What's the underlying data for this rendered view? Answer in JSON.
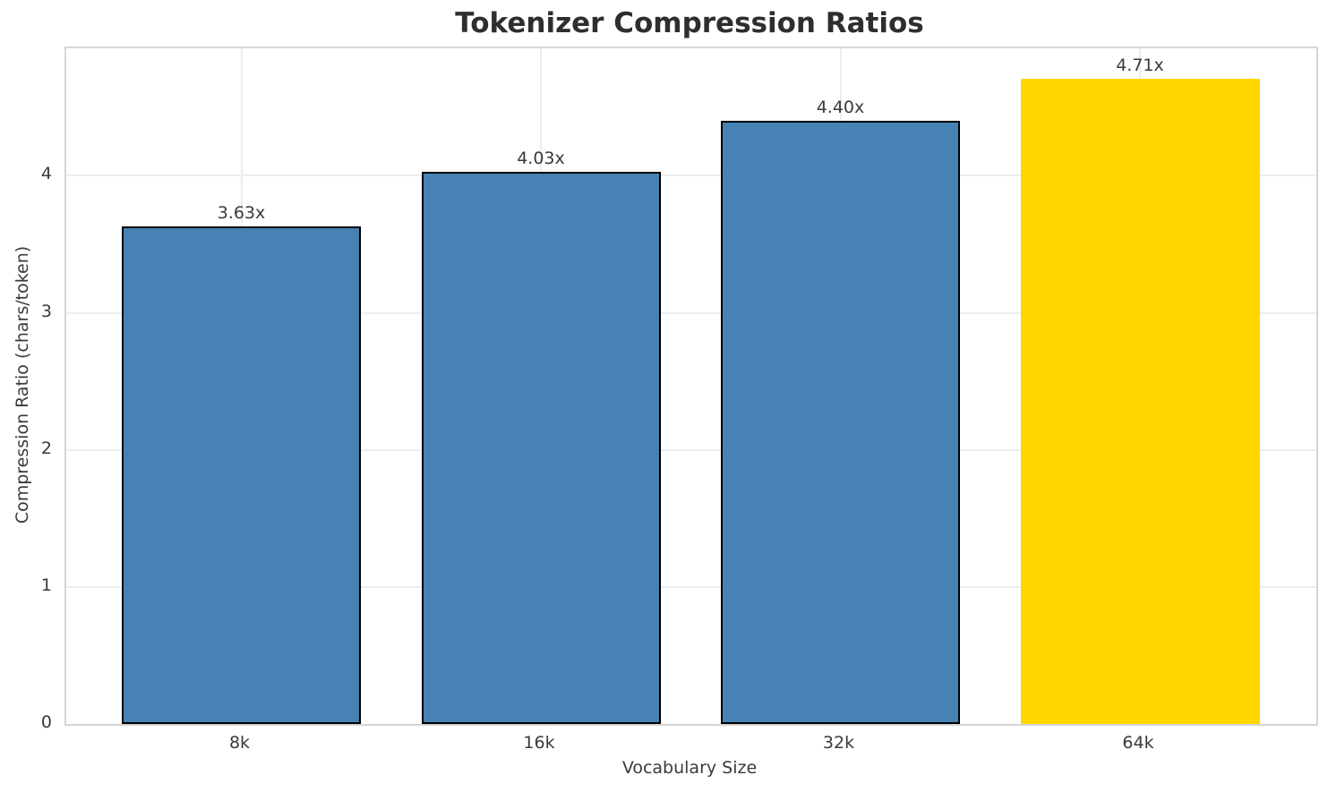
{
  "chart_data": {
    "type": "bar",
    "title": "Tokenizer Compression Ratios",
    "xlabel": "Vocabulary Size",
    "ylabel": "Compression Ratio (chars/token)",
    "categories": [
      "8k",
      "16k",
      "32k",
      "64k"
    ],
    "values": [
      3.63,
      4.03,
      4.4,
      4.71
    ],
    "bar_labels": [
      "3.63x",
      "4.03x",
      "4.40x",
      "4.71x"
    ],
    "yticks": [
      "0",
      "1",
      "2",
      "3",
      "4"
    ],
    "ylim": [
      0,
      4.93
    ],
    "grid": true,
    "legend_position": "none",
    "highlight_index": 3,
    "bar_colors": [
      "#4682B4",
      "#4682B4",
      "#4682B4",
      "#FFD700"
    ],
    "bar_edge_colors": [
      "#000000",
      "#000000",
      "#000000",
      "none"
    ],
    "colors": {
      "bar_default": "#4682B4",
      "bar_highlight": "#FFD700",
      "bar_edge": "#000000",
      "grid": "#EDEDED",
      "spine": "#D5D5D5",
      "text": "#3A3A3A",
      "title_text": "#2E2E2E",
      "background": "#FFFFFF"
    }
  }
}
